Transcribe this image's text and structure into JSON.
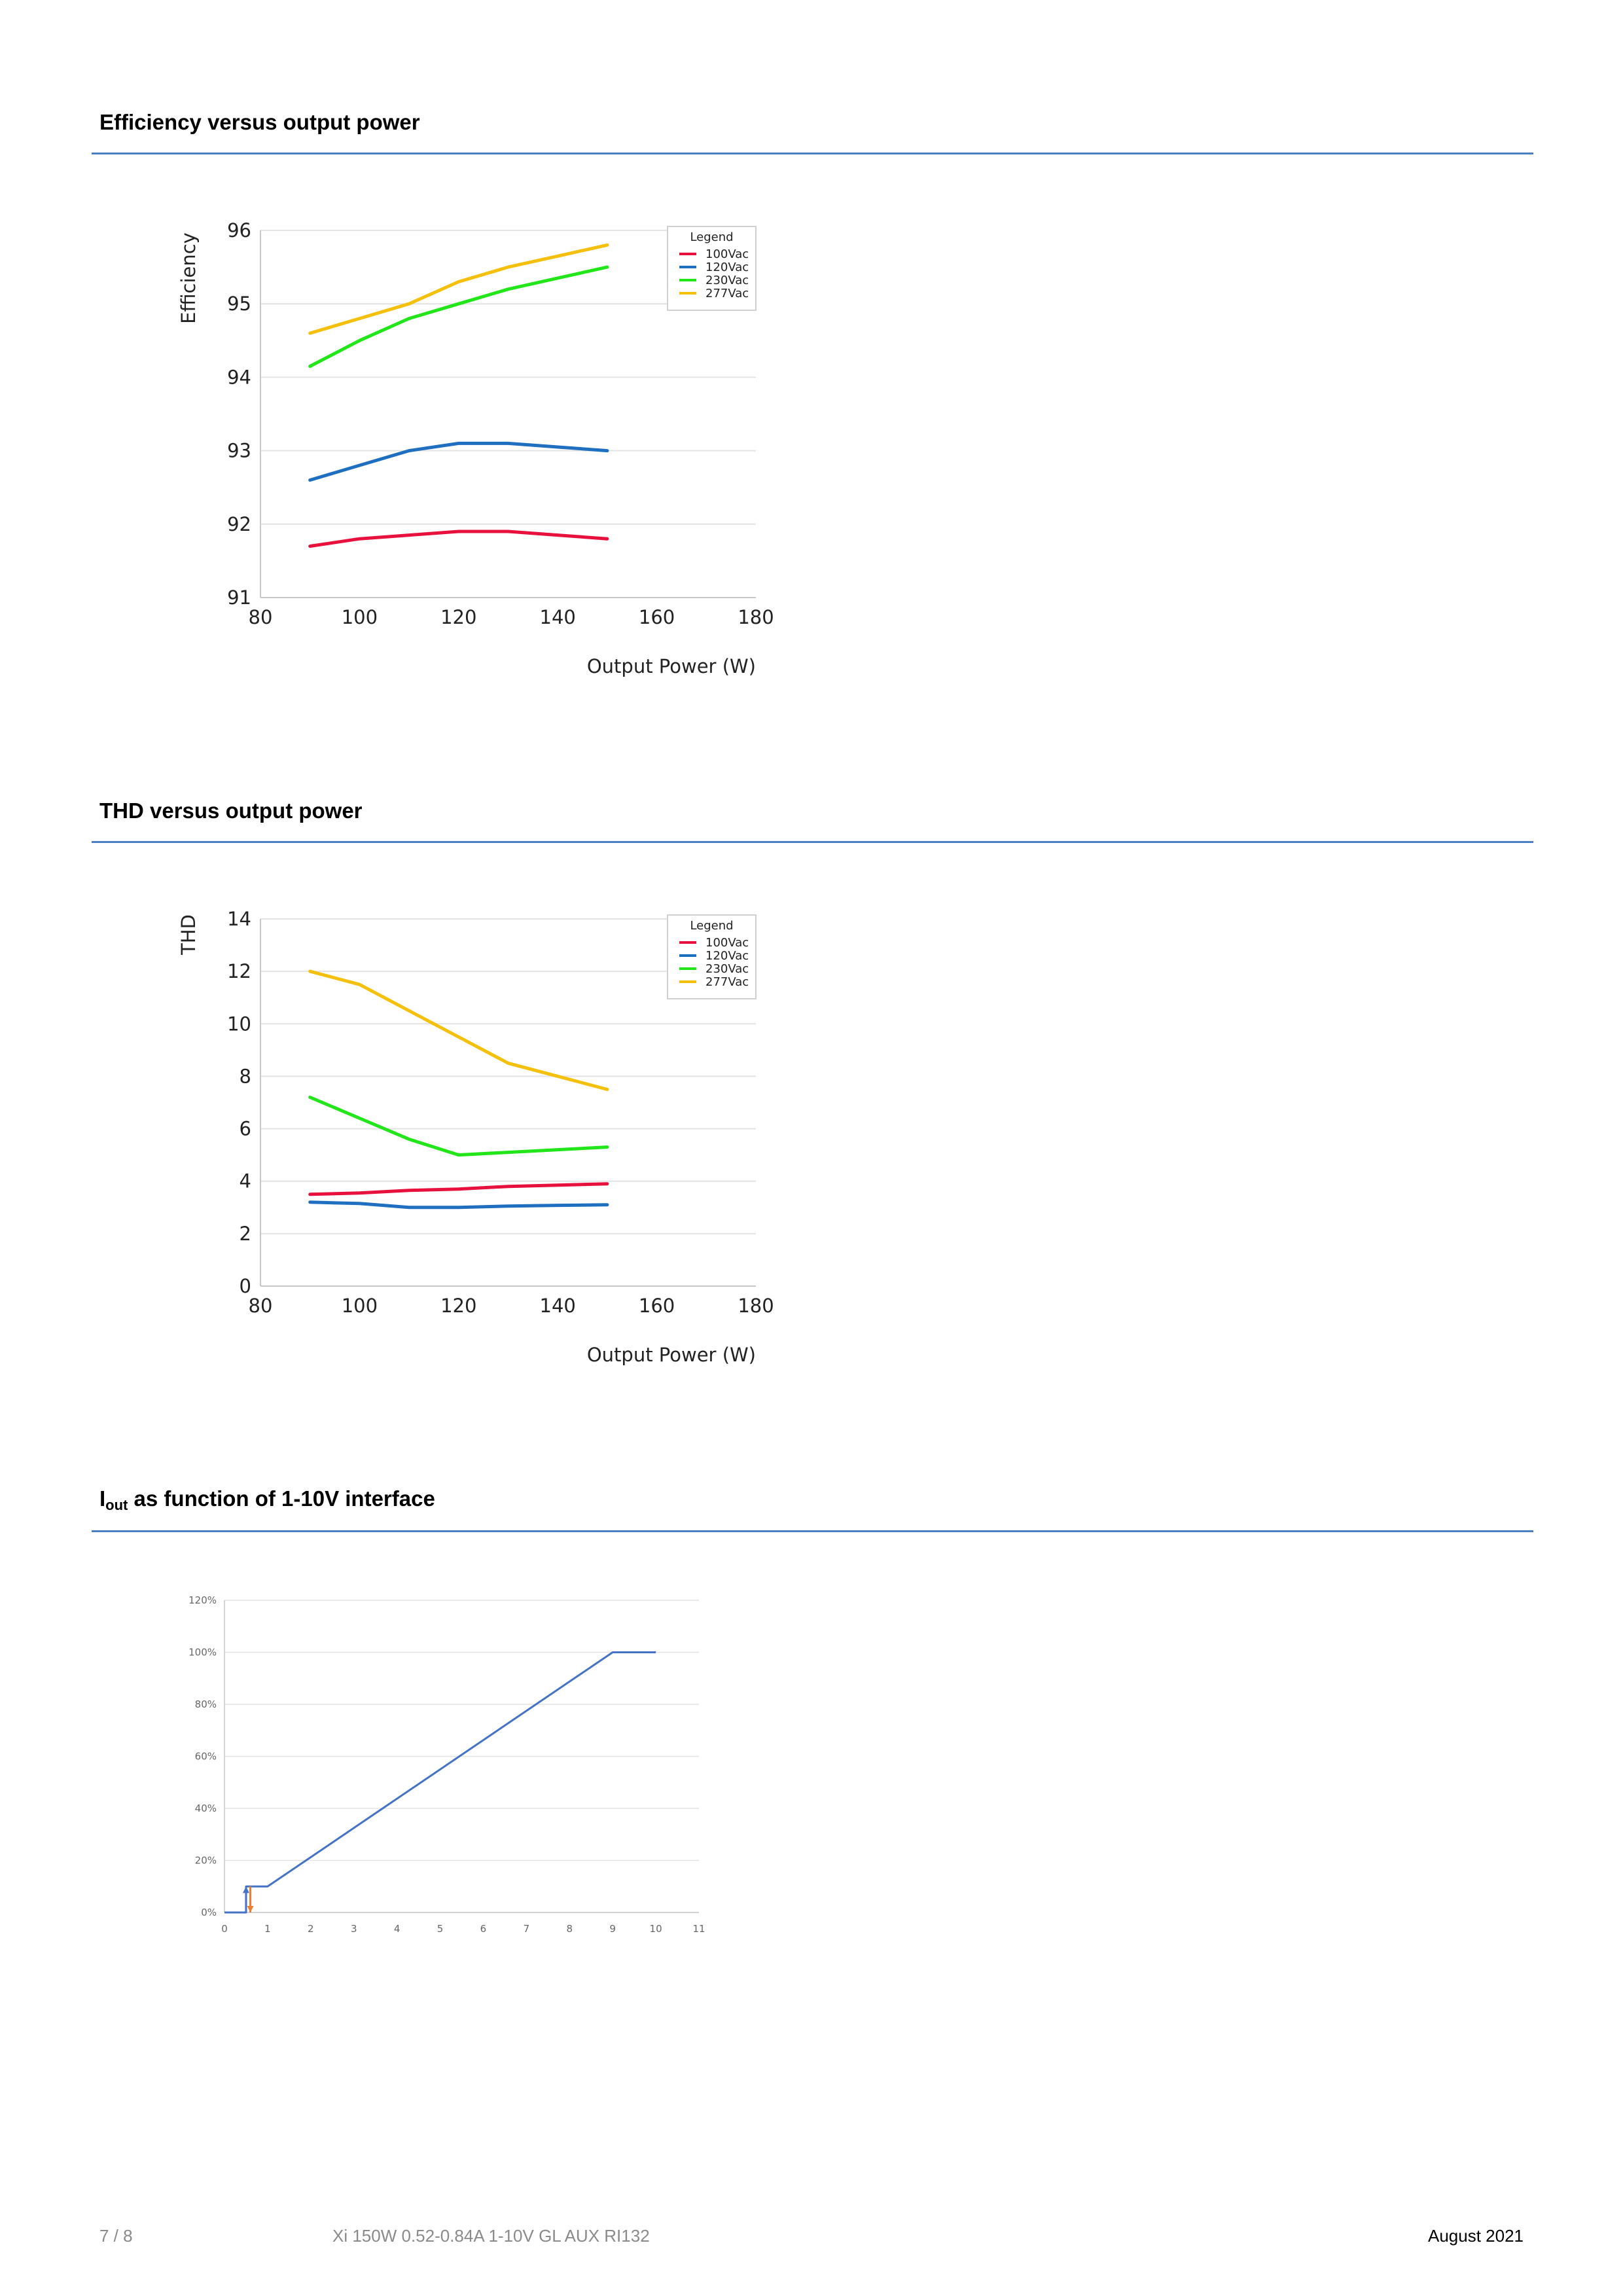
{
  "colors": {
    "rule": "#4a7fc4",
    "grid": "#e3e3e3",
    "axis": "#c8c8c8",
    "footer_grey": "#8a8a8a",
    "series_100": "#e8113d",
    "series_120": "#1f6fc0",
    "series_230": "#22e61a",
    "series_277": "#f5c00c",
    "iout_line": "#4472c4",
    "marker_orange": "#ed7d31"
  },
  "sections": {
    "efficiency_title": "Efficiency versus output power",
    "thd_title": "THD versus output power",
    "iout_title_main": "I",
    "iout_title_sub": "out",
    "iout_title_rest": " as function of 1-10V interface"
  },
  "chart_data": [
    {
      "type": "line",
      "title": "Efficiency versus output power",
      "xlabel": "Output Power (W)",
      "ylabel": "Efficiency",
      "xlim": [
        80,
        180
      ],
      "ylim": [
        91,
        96
      ],
      "xticks": [
        "80",
        "100",
        "120",
        "140",
        "160",
        "180"
      ],
      "yticks": [
        "91",
        "92",
        "93",
        "94",
        "95",
        "96"
      ],
      "grid": true,
      "legend_title": "Legend",
      "legend_position": "top-right",
      "x": [
        90,
        100,
        110,
        120,
        130,
        140,
        150
      ],
      "series": [
        {
          "name": "100Vac",
          "color": "#e8113d",
          "values": [
            91.7,
            91.8,
            91.85,
            91.9,
            91.9,
            91.85,
            91.8
          ]
        },
        {
          "name": "120Vac",
          "color": "#1f6fc0",
          "values": [
            92.6,
            92.8,
            93.0,
            93.1,
            93.1,
            93.05,
            93.0
          ]
        },
        {
          "name": "230Vac",
          "color": "#22e61a",
          "values": [
            94.15,
            94.5,
            94.8,
            95.0,
            95.2,
            95.35,
            95.5
          ]
        },
        {
          "name": "277Vac",
          "color": "#f5c00c",
          "values": [
            94.6,
            94.8,
            95.0,
            95.3,
            95.5,
            95.65,
            95.8
          ]
        }
      ]
    },
    {
      "type": "line",
      "title": "THD versus output power",
      "xlabel": "Output Power (W)",
      "ylabel": "THD",
      "xlim": [
        80,
        180
      ],
      "ylim": [
        0,
        14
      ],
      "xticks": [
        "80",
        "100",
        "120",
        "140",
        "160",
        "180"
      ],
      "yticks": [
        "0",
        "2",
        "4",
        "6",
        "8",
        "10",
        "12",
        "14"
      ],
      "grid": true,
      "legend_title": "Legend",
      "legend_position": "top-right",
      "x": [
        90,
        100,
        110,
        120,
        130,
        140,
        150
      ],
      "series": [
        {
          "name": "100Vac",
          "color": "#e8113d",
          "values": [
            3.5,
            3.55,
            3.65,
            3.7,
            3.8,
            3.85,
            3.9
          ]
        },
        {
          "name": "120Vac",
          "color": "#1f6fc0",
          "values": [
            3.2,
            3.15,
            3.0,
            3.0,
            3.05,
            3.08,
            3.1
          ]
        },
        {
          "name": "230Vac",
          "color": "#22e61a",
          "values": [
            7.2,
            6.4,
            5.6,
            5.0,
            5.1,
            5.2,
            5.3
          ]
        },
        {
          "name": "277Vac",
          "color": "#f5c00c",
          "values": [
            12.0,
            11.5,
            10.5,
            9.5,
            8.5,
            8.0,
            7.5
          ]
        }
      ]
    },
    {
      "type": "line",
      "title": "Iout as function of 1-10V interface",
      "xlabel": "",
      "ylabel": "",
      "xlim": [
        0,
        11
      ],
      "ylim": [
        0,
        120
      ],
      "xticks": [
        "0",
        "1",
        "2",
        "3",
        "4",
        "5",
        "6",
        "7",
        "8",
        "9",
        "10",
        "11"
      ],
      "yticks": [
        "0%",
        "20%",
        "40%",
        "60%",
        "80%",
        "100%",
        "120%"
      ],
      "grid": true,
      "series": [
        {
          "color": "#4472c4",
          "x": [
            0,
            0.5,
            0.5,
            1.0,
            9.0,
            10.0
          ],
          "values": [
            0,
            0,
            10,
            10,
            100,
            100
          ]
        }
      ],
      "markers": [
        {
          "x": 0.5,
          "y_from": 0,
          "y_to": 10,
          "direction": "up",
          "color": "#4472c4"
        },
        {
          "x": 0.6,
          "y_from": 10,
          "y_to": 0,
          "direction": "down",
          "color": "#ed7d31"
        }
      ]
    }
  ],
  "footer": {
    "page": "7 / 8",
    "product": "Xi 150W 0.52-0.84A 1-10V GL AUX RI132",
    "date": "August 2021"
  }
}
